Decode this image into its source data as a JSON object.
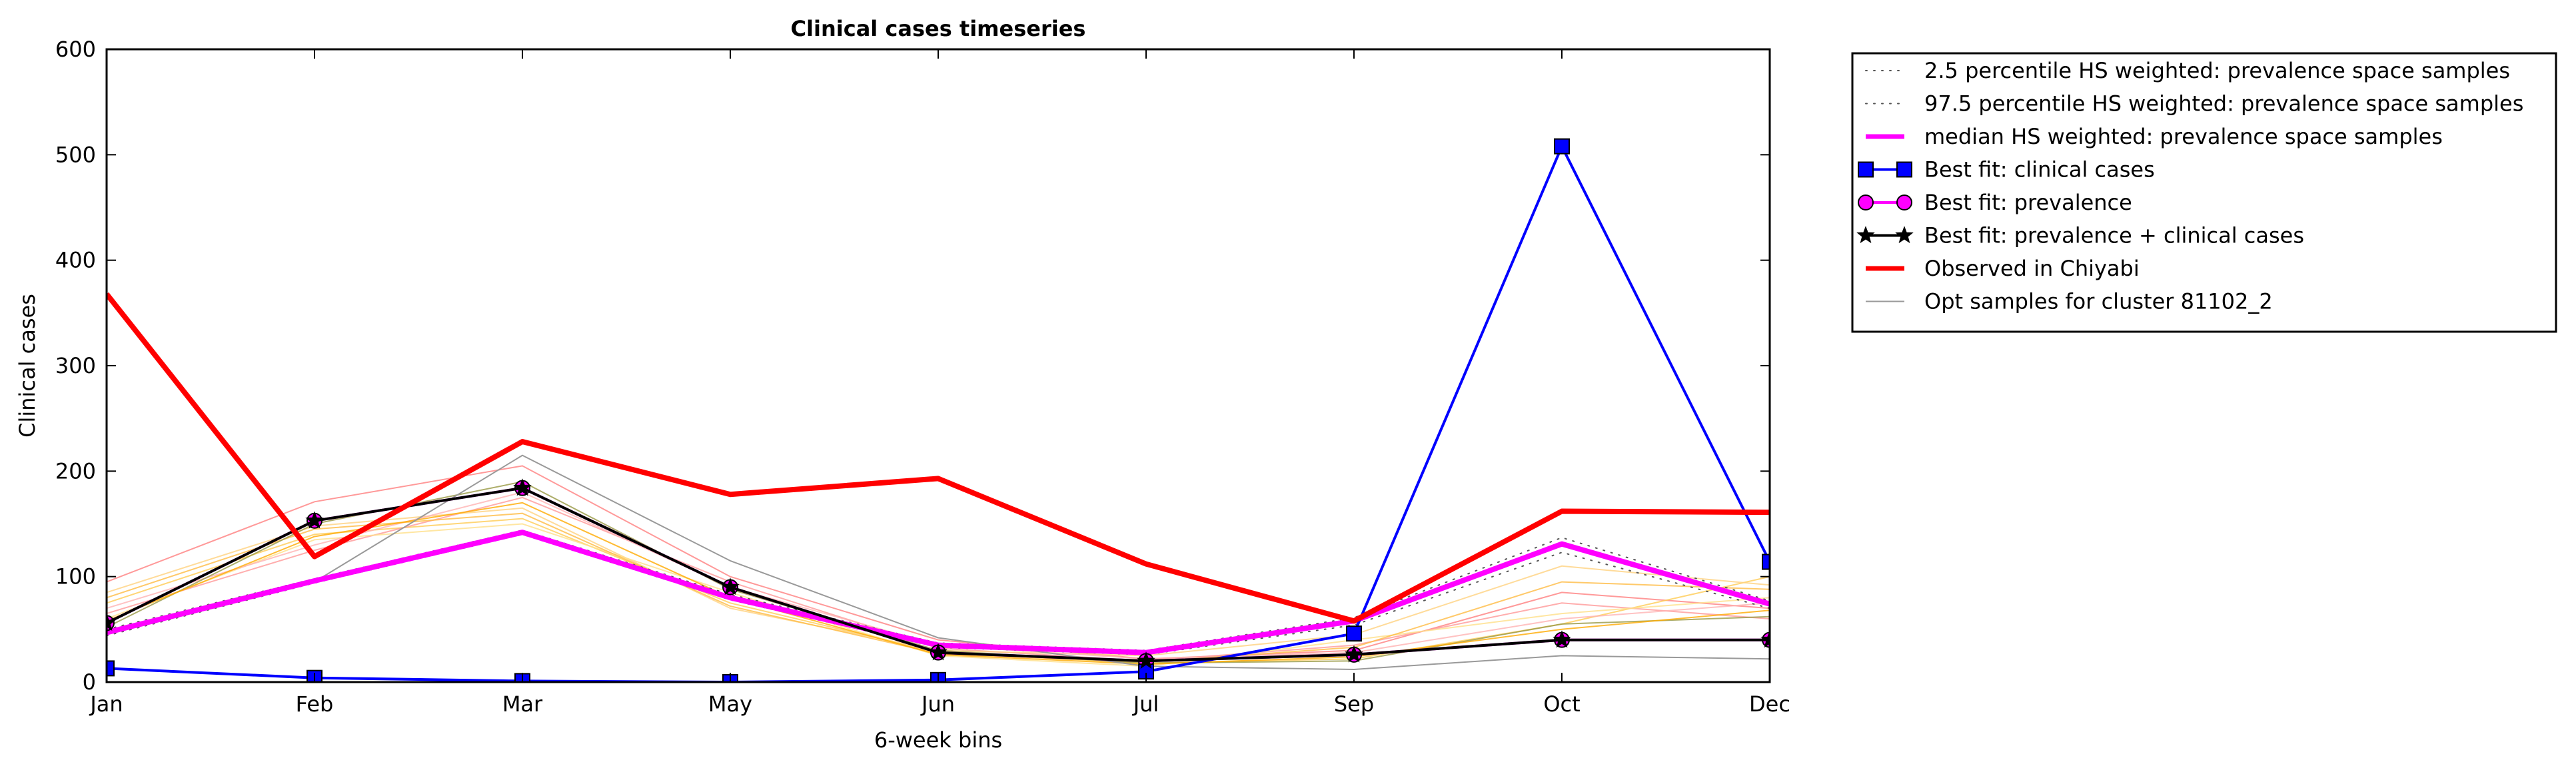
{
  "chart_data": {
    "type": "line",
    "title": "Clinical cases timeseries",
    "xlabel": "6-week bins",
    "ylabel": "Clinical cases",
    "categories": [
      "Jan",
      "Feb",
      "Mar",
      "May",
      "Jun",
      "Jul",
      "Sep",
      "Oct",
      "Dec"
    ],
    "ylim": [
      0,
      600
    ],
    "yticks": [
      0,
      100,
      200,
      300,
      400,
      500,
      600
    ],
    "grid": false,
    "legend_position": "outside-right",
    "series": [
      {
        "name": "2.5 percentile HS weighted: prevalence space samples",
        "style": "dotted",
        "color": "#555555",
        "values": [
          44,
          94,
          140,
          78,
          33,
          26,
          54,
          123,
          70
        ]
      },
      {
        "name": "97.5 percentile HS weighted: prevalence space samples",
        "style": "dotted",
        "color": "#555555",
        "values": [
          50,
          98,
          144,
          83,
          37,
          30,
          61,
          137,
          77
        ]
      },
      {
        "name": "median HS weighted: prevalence space samples",
        "style": "thick",
        "color": "#ff00ff",
        "values": [
          47,
          96,
          142,
          80,
          35,
          28,
          58,
          131,
          74
        ]
      },
      {
        "name": "Best fit: clinical cases",
        "style": "square-markers",
        "color": "#0000ff",
        "values": [
          13,
          4,
          1,
          0,
          2,
          10,
          46,
          508,
          114
        ]
      },
      {
        "name": "Best fit: prevalence",
        "style": "circle-markers",
        "color": "#ff00ff",
        "values": [
          56,
          153,
          184,
          90,
          28,
          20,
          26,
          40,
          40
        ]
      },
      {
        "name": "Best fit: prevalence + clinical cases",
        "style": "star-markers",
        "color": "#000000",
        "values": [
          56,
          153,
          184,
          90,
          28,
          20,
          26,
          40,
          40
        ]
      },
      {
        "name": "Observed in Chiyabi",
        "style": "thick",
        "color": "#ff0000",
        "values": [
          368,
          119,
          228,
          178,
          193,
          112,
          58,
          162,
          161
        ]
      },
      {
        "name": "Opt samples for cluster 81102_2",
        "style": "thin",
        "color": "#999999",
        "values": [
          48,
          95,
          215,
          115,
          42,
          15,
          12,
          25,
          22
        ]
      }
    ],
    "background_samples": [
      {
        "color": "#ff7f7f",
        "values": [
          95,
          171,
          205,
          100,
          40,
          22,
          30,
          85,
          70
        ]
      },
      {
        "color": "#ffcc55",
        "values": [
          75,
          140,
          155,
          75,
          28,
          18,
          22,
          55,
          100
        ]
      },
      {
        "color": "#ff9999",
        "values": [
          65,
          125,
          175,
          95,
          32,
          20,
          35,
          75,
          60
        ]
      },
      {
        "color": "#ffd27f",
        "values": [
          85,
          148,
          165,
          70,
          30,
          25,
          45,
          110,
          92
        ]
      },
      {
        "color": "#ffe08a",
        "values": [
          60,
          135,
          150,
          85,
          25,
          15,
          40,
          65,
          80
        ]
      },
      {
        "color": "#ffb3b3",
        "values": [
          70,
          130,
          180,
          90,
          35,
          22,
          28,
          60,
          75
        ]
      },
      {
        "color": "#ffbb44",
        "values": [
          80,
          145,
          160,
          72,
          27,
          19,
          33,
          95,
          88
        ]
      },
      {
        "color": "#999944",
        "values": [
          52,
          150,
          190,
          88,
          30,
          18,
          20,
          55,
          62
        ]
      },
      {
        "color": "#ffaa00",
        "values": [
          58,
          138,
          170,
          80,
          26,
          17,
          24,
          50,
          68
        ]
      }
    ]
  }
}
